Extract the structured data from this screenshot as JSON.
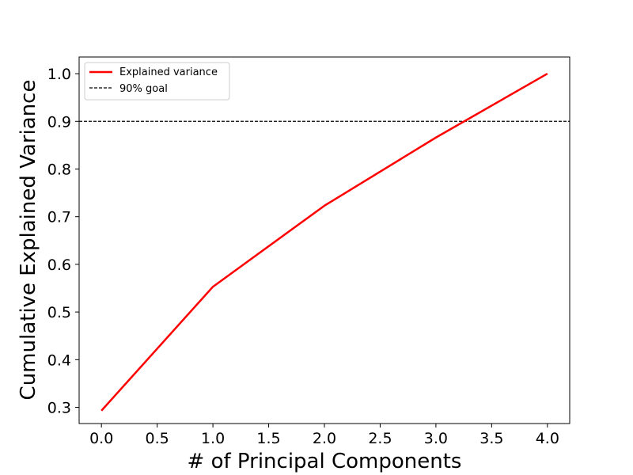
{
  "chart_data": {
    "type": "line",
    "title": "",
    "xlabel": "# of Principal Components",
    "ylabel": "Cumulative Explained Variance",
    "xlim": [
      -0.2,
      4.2
    ],
    "ylim": [
      0.266,
      1.035
    ],
    "x_ticks": [
      0.0,
      0.5,
      1.0,
      1.5,
      2.0,
      2.5,
      3.0,
      3.5,
      4.0
    ],
    "x_tick_labels": [
      "0.0",
      "0.5",
      "1.0",
      "1.5",
      "2.0",
      "2.5",
      "3.0",
      "3.5",
      "4.0"
    ],
    "y_ticks": [
      0.3,
      0.4,
      0.5,
      0.6,
      0.7,
      0.8,
      0.9,
      1.0
    ],
    "y_tick_labels": [
      "0.3",
      "0.4",
      "0.5",
      "0.6",
      "0.7",
      "0.8",
      "0.9",
      "1.0"
    ],
    "grid": false,
    "legend_position": "top-left",
    "series": [
      {
        "name": "Explained variance",
        "color": "#ff0000",
        "style": "solid",
        "x": [
          0,
          1,
          2,
          3,
          4
        ],
        "y": [
          0.293,
          0.553,
          0.723,
          0.866,
          1.0
        ]
      }
    ],
    "reference_lines": [
      {
        "name": "90% goal",
        "orientation": "horizontal",
        "y": 0.9,
        "color": "#000000",
        "style": "dashed"
      }
    ]
  }
}
